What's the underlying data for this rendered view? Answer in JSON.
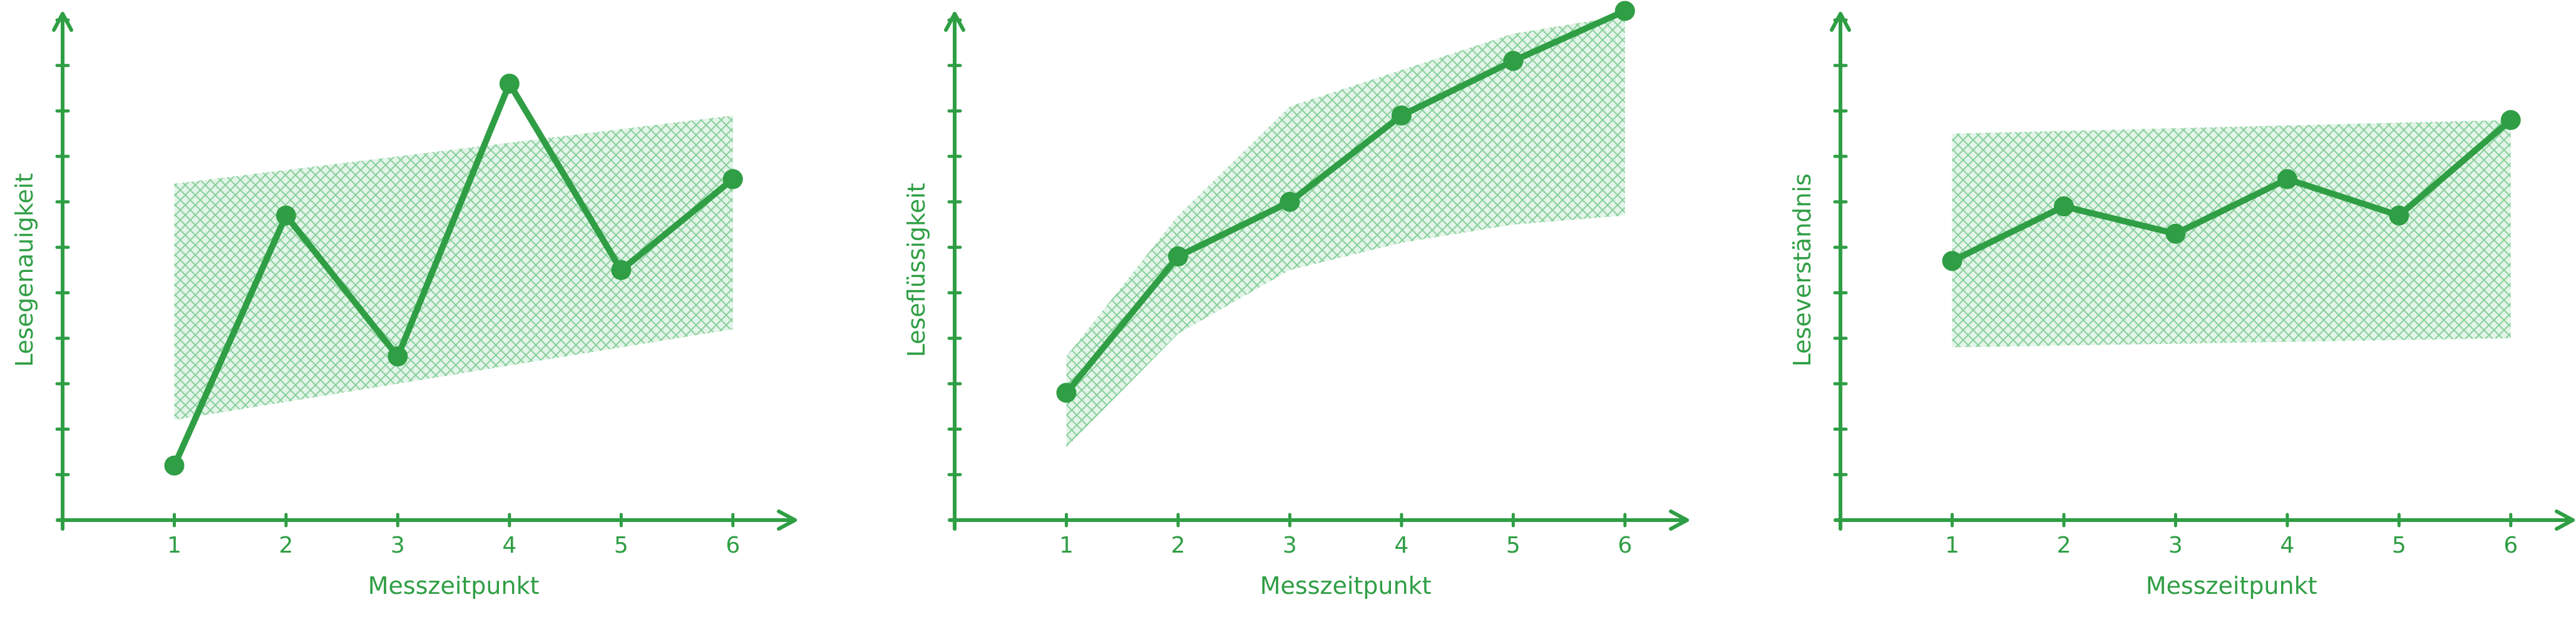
{
  "colors": {
    "accent": "#2f9e44",
    "band": "#b2e2bf"
  },
  "chart_data": [
    {
      "type": "line",
      "xlabel": "Messzeitpunkt",
      "ylabel": "Lesegenauigkeit",
      "x": [
        1,
        2,
        3,
        4,
        5,
        6
      ],
      "x_tick_labels": [
        "1",
        "2",
        "3",
        "4",
        "5",
        "6"
      ],
      "values": [
        1.2,
        6.7,
        3.6,
        9.6,
        5.5,
        7.5
      ],
      "band": {
        "x": [
          1,
          6
        ],
        "lower": [
          2.2,
          4.2
        ],
        "upper": [
          7.4,
          8.9
        ]
      },
      "xlim": [
        0,
        6.5
      ],
      "ylim": [
        0,
        11
      ],
      "y_ticks": 11,
      "grid": false,
      "legend": false
    },
    {
      "type": "line",
      "xlabel": "Messzeitpunkt",
      "ylabel": "Leseflüssigkeit",
      "x": [
        1,
        2,
        3,
        4,
        5,
        6
      ],
      "x_tick_labels": [
        "1",
        "2",
        "3",
        "4",
        "5",
        "6"
      ],
      "values": [
        2.8,
        5.8,
        7.0,
        8.9,
        10.1,
        11.2
      ],
      "band": {
        "x": [
          1,
          2,
          3,
          4,
          5,
          6
        ],
        "lower": [
          1.6,
          4.1,
          5.5,
          6.1,
          6.5,
          6.7
        ],
        "upper": [
          3.6,
          6.7,
          9.1,
          9.9,
          10.7,
          11.1
        ]
      },
      "xlim": [
        0,
        6.5
      ],
      "ylim": [
        0,
        11
      ],
      "y_ticks": 11,
      "grid": false,
      "legend": false
    },
    {
      "type": "line",
      "xlabel": "Messzeitpunkt",
      "ylabel": "Leseverständnis",
      "x": [
        1,
        2,
        3,
        4,
        5,
        6
      ],
      "x_tick_labels": [
        "1",
        "2",
        "3",
        "4",
        "5",
        "6"
      ],
      "values": [
        5.7,
        6.9,
        6.3,
        7.5,
        6.7,
        8.8
      ],
      "band": {
        "x": [
          1,
          6
        ],
        "lower": [
          3.8,
          4.0
        ],
        "upper": [
          8.5,
          8.8
        ]
      },
      "xlim": [
        0,
        6.5
      ],
      "ylim": [
        0,
        11
      ],
      "y_ticks": 11,
      "grid": false,
      "legend": false
    }
  ]
}
